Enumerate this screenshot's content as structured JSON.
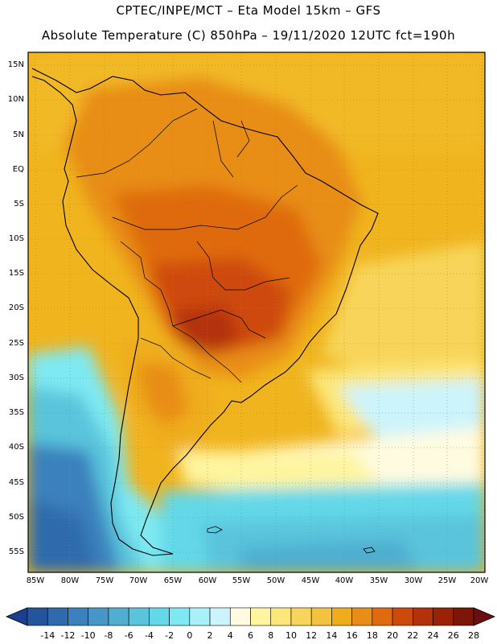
{
  "header": {
    "line1": "CPTEC/INPE/MCT –  Eta Model 15km – GFS",
    "line2": "Absolute Temperature (C) 850hPa – 19/11/2020 12UTC fct=190h"
  },
  "map": {
    "variable": "Absolute Temperature",
    "level": "850hPa",
    "lat_labels": [
      "15N",
      "10N",
      "5N",
      "EQ",
      "5S",
      "10S",
      "15S",
      "20S",
      "25S",
      "30S",
      "35S",
      "40S",
      "45S",
      "50S",
      "55S"
    ],
    "lon_labels": [
      "85W",
      "80W",
      "75W",
      "70W",
      "65W",
      "60W",
      "55W",
      "50W",
      "45W",
      "40W",
      "35W",
      "30W",
      "25W",
      "20W"
    ]
  },
  "colorbar": {
    "labels": [
      "-14",
      "-12",
      "-10",
      "-8",
      "-6",
      "-4",
      "-2",
      "0",
      "2",
      "4",
      "6",
      "8",
      "10",
      "12",
      "14",
      "16",
      "18",
      "20",
      "22",
      "24",
      "26",
      "28"
    ],
    "colors": [
      "#1b3f8f",
      "#24559c",
      "#2f6aac",
      "#3a81bd",
      "#4697c6",
      "#50aed0",
      "#5ac4dc",
      "#64d8e8",
      "#7ee9f2",
      "#a8f0fa",
      "#ccf4fc",
      "#fffbe0",
      "#fff5a0",
      "#fde77a",
      "#f8d55a",
      "#f3c23f",
      "#efad1e",
      "#e88d16",
      "#df6a10",
      "#cd4a0b",
      "#b43209",
      "#9a2207",
      "#7e1608",
      "#6a0e12"
    ]
  }
}
